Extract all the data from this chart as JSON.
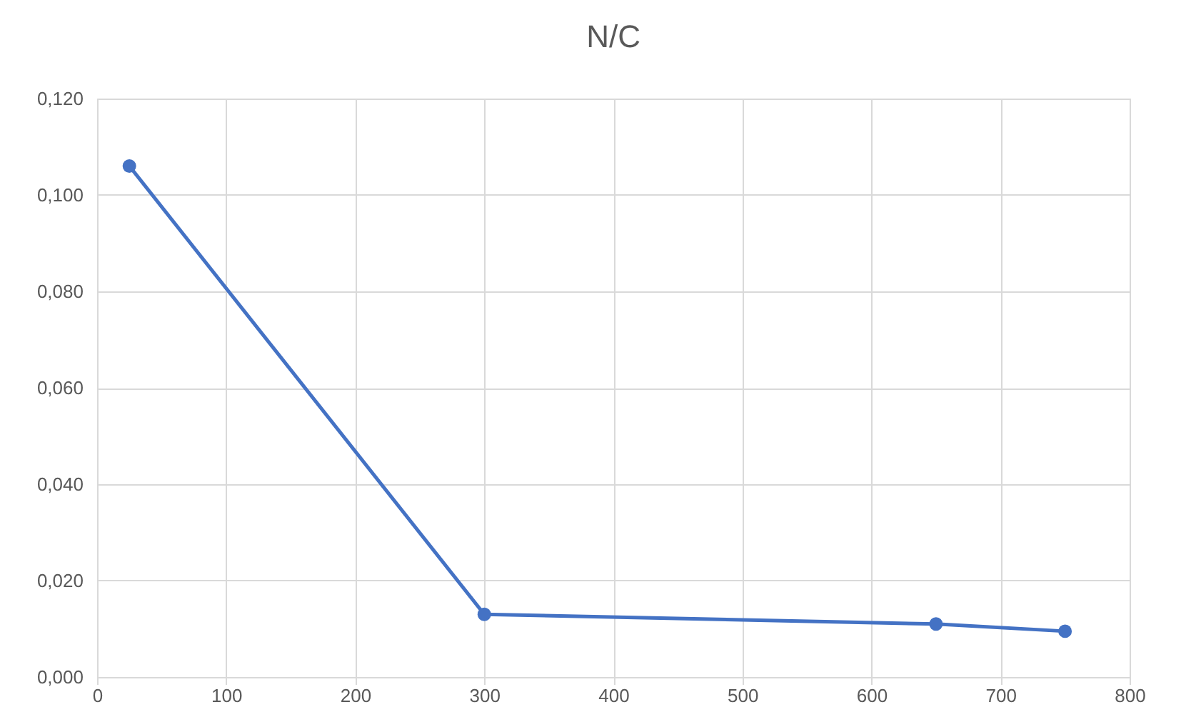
{
  "chart_data": {
    "type": "line",
    "title": "N/C",
    "x": [
      25,
      300,
      650,
      750
    ],
    "series": [
      {
        "color": "#4472c4",
        "values": [
          0.106,
          0.013,
          0.011,
          0.0095
        ]
      }
    ],
    "xlim": [
      0,
      800
    ],
    "xticks": [
      0,
      100,
      200,
      300,
      400,
      500,
      600,
      700,
      800
    ],
    "ylim": [
      0,
      0.12
    ],
    "yticks": [
      {
        "value": 0,
        "label": "0,000"
      },
      {
        "value": 0.02,
        "label": "0,020"
      },
      {
        "value": 0.04,
        "label": "0,040"
      },
      {
        "value": 0.06,
        "label": "0,060"
      },
      {
        "value": 0.08,
        "label": "0,080"
      },
      {
        "value": 0.1,
        "label": "0,100"
      },
      {
        "value": 0.12,
        "label": "0,120"
      }
    ],
    "grid": true,
    "marker": "circle",
    "line_style": "solid"
  }
}
